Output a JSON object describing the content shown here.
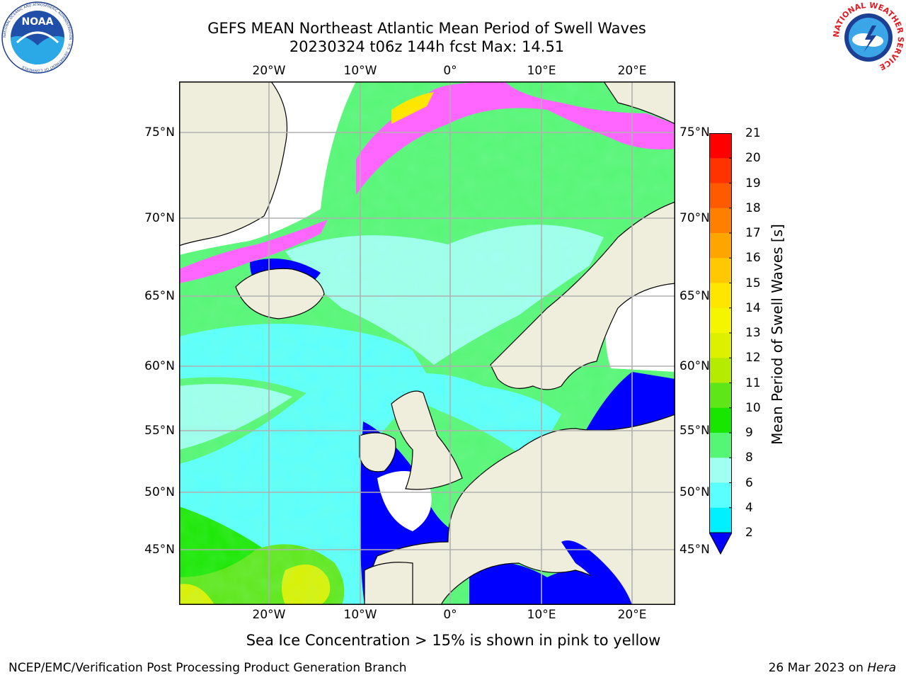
{
  "header": {
    "title_line1": "GEFS MEAN Northeast Atlantic Mean Period of Swell Waves",
    "title_line2": "20230324 t06z 144h fcst   Max: 14.51"
  },
  "logos": {
    "noaa": {
      "text": "NOAA",
      "ring_text": "NATIONAL OCEANIC AND ATMOSPHERIC ADMINISTRATION · U.S. DEPARTMENT OF COMMERCE"
    },
    "nws": {
      "ring_text": "NATIONAL WEATHER SERVICE"
    }
  },
  "map": {
    "lon_ticks": [
      "20°W",
      "10°W",
      "0°",
      "10°E",
      "20°E"
    ],
    "lat_ticks": [
      "75°N",
      "70°N",
      "65°N",
      "60°N",
      "55°N",
      "50°N",
      "45°N"
    ],
    "colors": {
      "land": "#efeedc",
      "grid": "#b0b0b0",
      "no_data": "#ffffff"
    }
  },
  "colorbar": {
    "title": "Mean Period of Swell Waves [s]",
    "labels": [
      "21",
      "20",
      "19",
      "18",
      "17",
      "16",
      "15",
      "14",
      "13",
      "12",
      "11",
      "10",
      "9",
      "8",
      "6",
      "4",
      "2"
    ],
    "colors": [
      "#ff0000",
      "#ff3300",
      "#ff5a00",
      "#ff8000",
      "#ffa500",
      "#ffc800",
      "#ffe600",
      "#f5f500",
      "#dcf000",
      "#b4eb00",
      "#5fe619",
      "#19e600",
      "#55f575",
      "#a0fff0",
      "#5affff",
      "#00f0ff",
      "#0080ff",
      "#0000ff"
    ]
  },
  "footer": {
    "note": "Sea Ice Concentration > 15% is shown in pink to yellow",
    "credit": "NCEP/EMC/Verification Post Processing Product Generation Branch",
    "date": "26 Mar 2023 on",
    "machine": "Hera"
  }
}
